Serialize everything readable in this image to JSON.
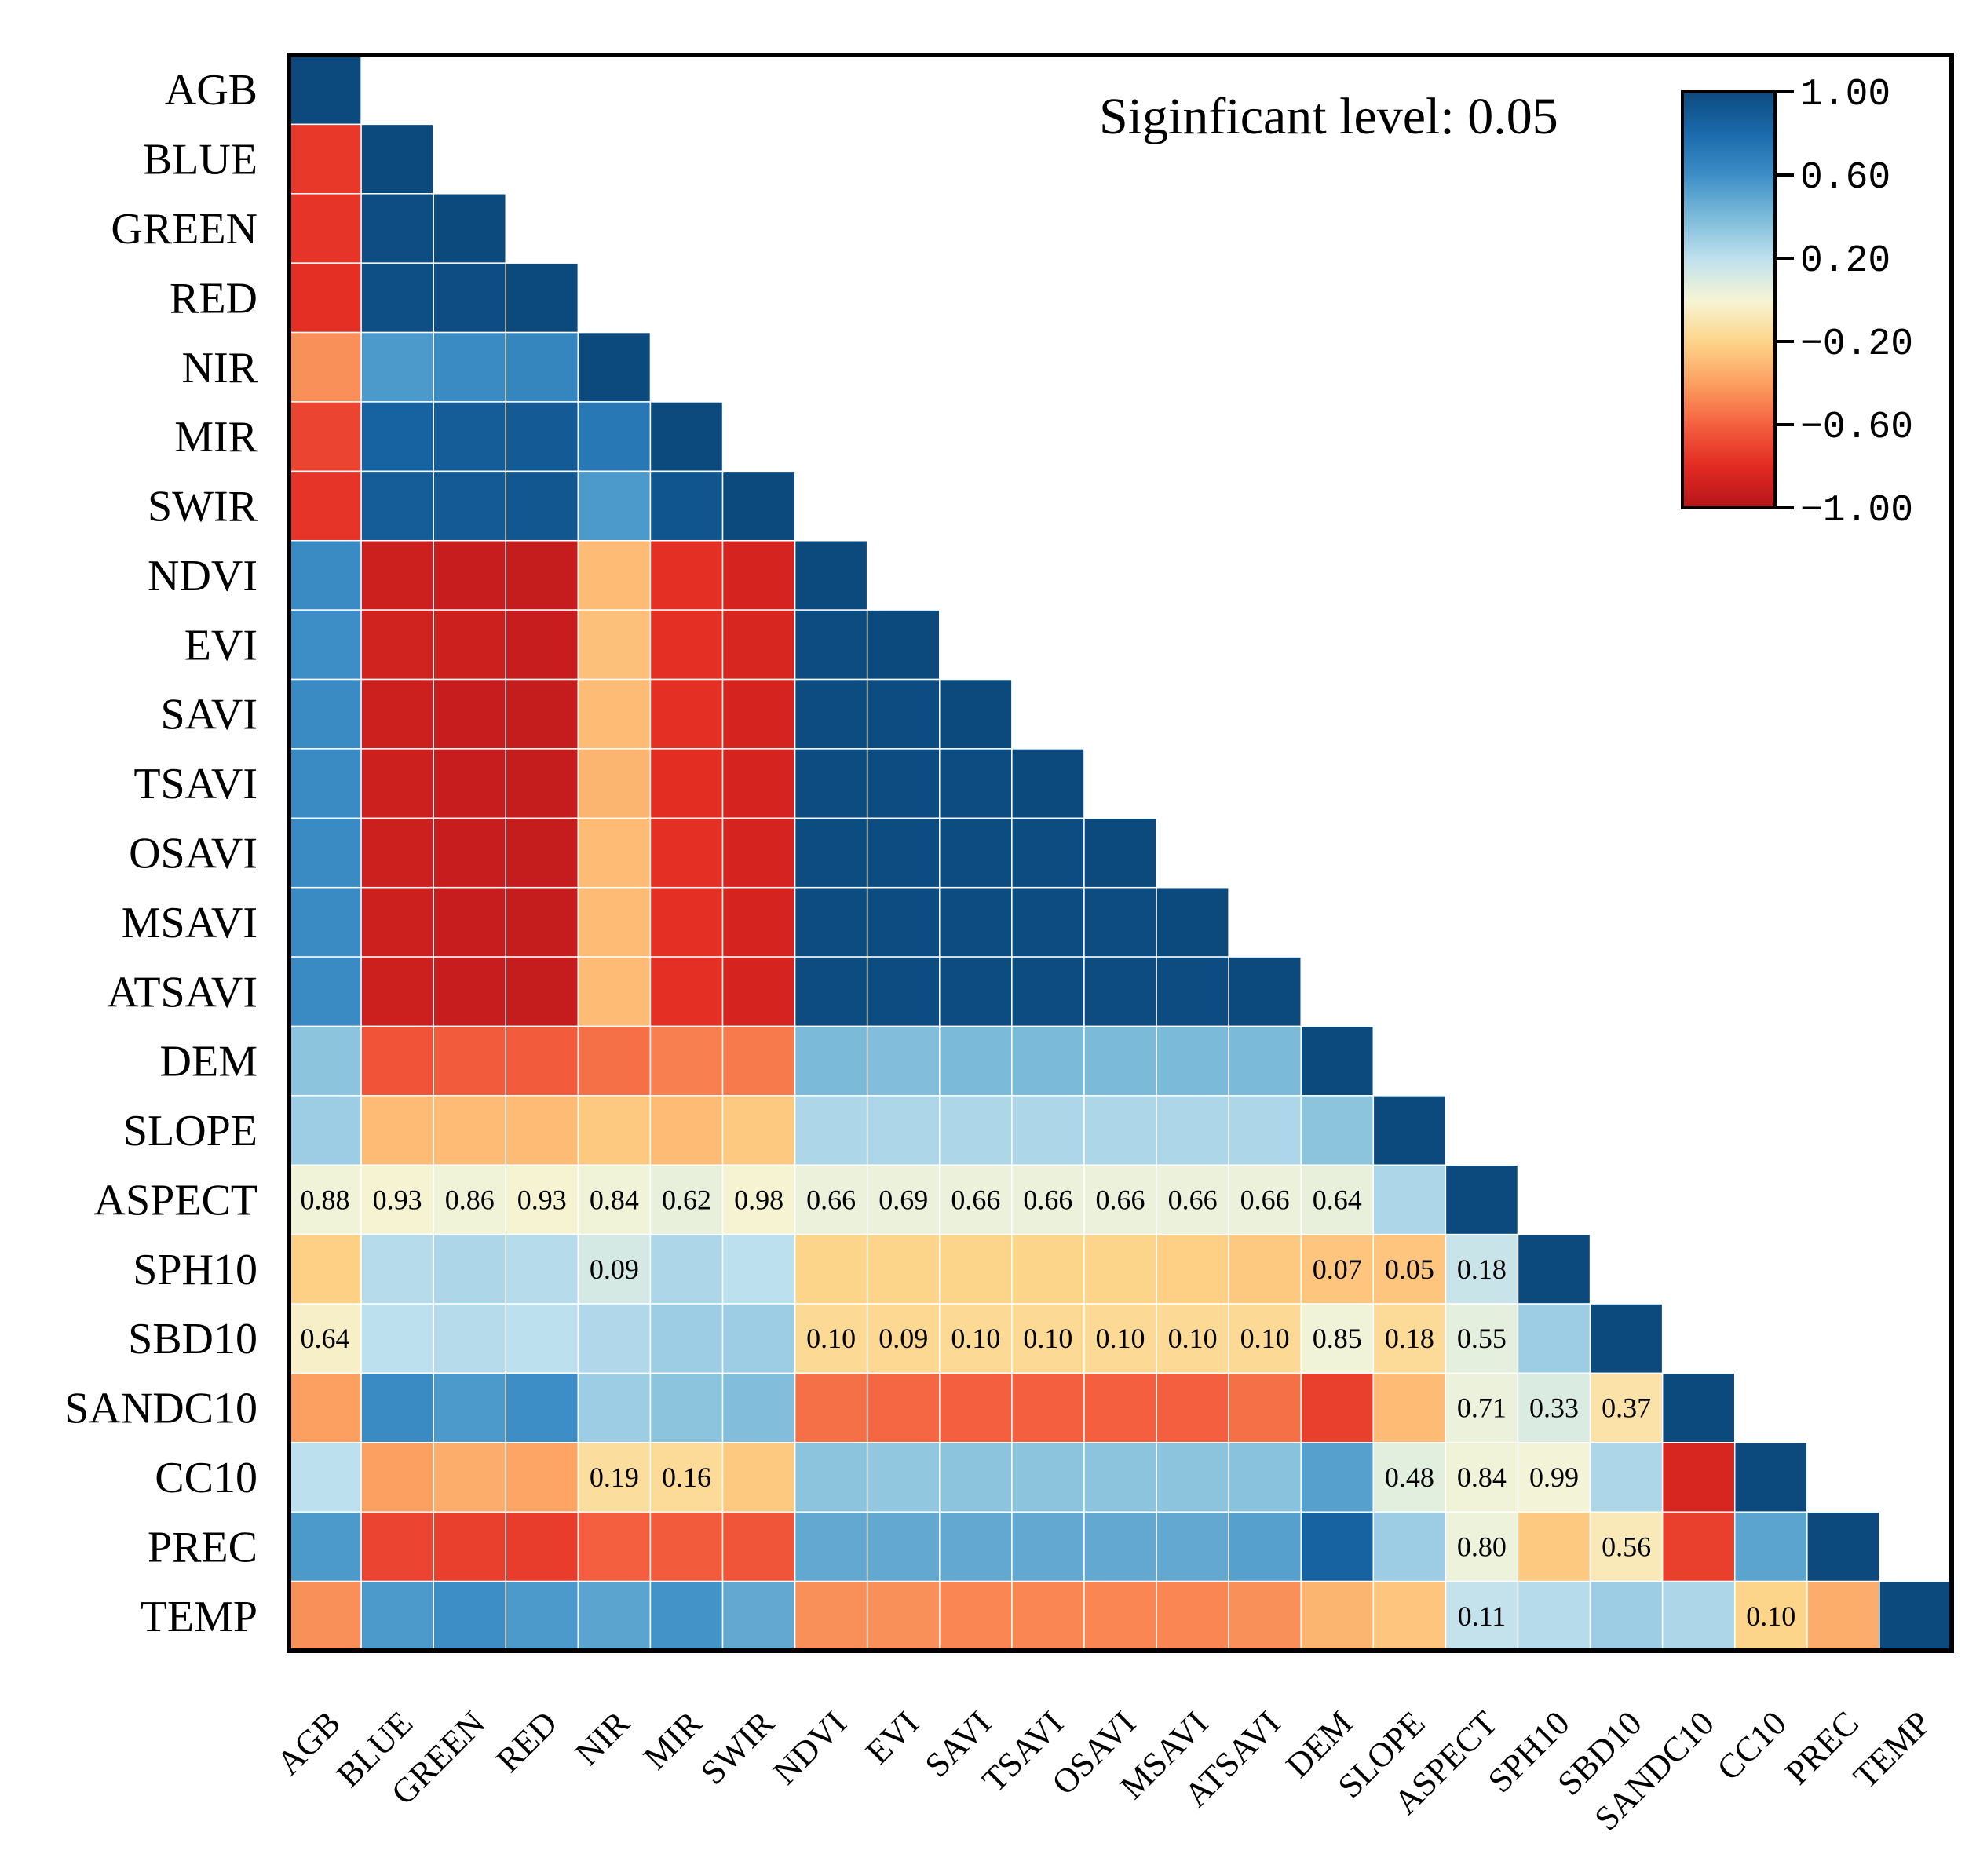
{
  "chart_data": {
    "type": "heatmap",
    "subtype": "lower-triangular correlation matrix",
    "annotation": "Siginficant level: 0.05",
    "variables": [
      "AGB",
      "BLUE",
      "GREEN",
      "RED",
      "NIR",
      "MIR",
      "SWIR",
      "NDVI",
      "EVI",
      "SAVI",
      "TSAVI",
      "OSAVI",
      "MSAVI",
      "ATSAVI",
      "DEM",
      "SLOPE",
      "ASPECT",
      "SPH10",
      "SBD10",
      "SANDC10",
      "CC10",
      "PREC",
      "TEMP"
    ],
    "correlation_rows": [
      [
        1.0
      ],
      [
        -0.75,
        1.0
      ],
      [
        -0.76,
        0.98,
        1.0
      ],
      [
        -0.78,
        0.97,
        0.98,
        1.0
      ],
      [
        -0.45,
        0.55,
        0.62,
        0.65,
        1.0
      ],
      [
        -0.7,
        0.85,
        0.88,
        0.9,
        0.72,
        1.0
      ],
      [
        -0.76,
        0.88,
        0.9,
        0.92,
        0.55,
        0.93,
        1.0
      ],
      [
        0.62,
        -0.9,
        -0.92,
        -0.93,
        -0.3,
        -0.78,
        -0.86,
        1.0
      ],
      [
        0.6,
        -0.88,
        -0.9,
        -0.92,
        -0.28,
        -0.78,
        -0.85,
        0.99,
        1.0
      ],
      [
        0.62,
        -0.9,
        -0.92,
        -0.93,
        -0.3,
        -0.78,
        -0.86,
        0.99,
        0.99,
        1.0
      ],
      [
        0.62,
        -0.9,
        -0.92,
        -0.93,
        -0.32,
        -0.79,
        -0.86,
        0.99,
        0.99,
        0.99,
        1.0
      ],
      [
        0.62,
        -0.9,
        -0.92,
        -0.93,
        -0.3,
        -0.78,
        -0.86,
        0.99,
        0.99,
        0.99,
        0.99,
        1.0
      ],
      [
        0.62,
        -0.9,
        -0.92,
        -0.93,
        -0.3,
        -0.78,
        -0.86,
        0.99,
        0.99,
        0.99,
        0.99,
        0.99,
        1.0
      ],
      [
        0.62,
        -0.9,
        -0.92,
        -0.93,
        -0.3,
        -0.78,
        -0.86,
        0.99,
        0.99,
        0.99,
        0.99,
        0.99,
        0.99,
        1.0
      ],
      [
        0.35,
        -0.65,
        -0.62,
        -0.62,
        -0.55,
        -0.5,
        -0.52,
        0.4,
        0.38,
        0.4,
        0.4,
        0.4,
        0.4,
        0.4,
        1.0
      ],
      [
        0.3,
        -0.3,
        -0.3,
        -0.3,
        -0.25,
        -0.3,
        -0.25,
        0.25,
        0.25,
        0.25,
        0.25,
        0.25,
        0.25,
        0.25,
        0.35,
        1.0
      ],
      [
        0.02,
        -0.01,
        0.02,
        -0.01,
        0.02,
        0.05,
        -0.01,
        0.04,
        0.04,
        0.04,
        0.04,
        0.04,
        0.04,
        0.04,
        0.05,
        0.25,
        1.0
      ],
      [
        -0.22,
        0.22,
        0.25,
        0.22,
        0.12,
        0.25,
        0.2,
        -0.2,
        -0.2,
        -0.2,
        -0.2,
        -0.2,
        -0.22,
        -0.25,
        -0.26,
        -0.26,
        0.16,
        1.0
      ],
      [
        -0.04,
        0.2,
        0.22,
        0.2,
        0.24,
        0.3,
        0.3,
        -0.17,
        -0.18,
        -0.17,
        -0.17,
        -0.17,
        -0.17,
        -0.17,
        0.02,
        -0.16,
        0.06,
        0.3,
        1.0
      ],
      [
        -0.4,
        0.62,
        0.55,
        0.6,
        0.3,
        0.35,
        0.38,
        -0.55,
        -0.58,
        -0.6,
        -0.6,
        -0.6,
        -0.6,
        -0.55,
        -0.72,
        -0.3,
        0.04,
        0.1,
        -0.12,
        1.0
      ],
      [
        0.2,
        -0.4,
        -0.35,
        -0.38,
        -0.15,
        -0.16,
        -0.25,
        0.35,
        0.33,
        0.35,
        0.35,
        0.35,
        0.35,
        0.36,
        0.52,
        0.07,
        0.02,
        0.01,
        0.25,
        -0.85,
        1.0
      ],
      [
        0.55,
        -0.7,
        -0.72,
        -0.73,
        -0.6,
        -0.62,
        -0.64,
        0.48,
        0.48,
        0.48,
        0.48,
        0.48,
        0.48,
        0.52,
        0.85,
        0.3,
        0.03,
        -0.25,
        -0.08,
        -0.72,
        0.5,
        1.0
      ],
      [
        -0.45,
        0.55,
        0.6,
        0.55,
        0.5,
        0.58,
        0.48,
        -0.45,
        -0.45,
        -0.48,
        -0.48,
        -0.48,
        -0.48,
        -0.45,
        -0.32,
        -0.26,
        0.18,
        0.22,
        0.3,
        0.25,
        -0.2,
        -0.35,
        1.0
      ]
    ],
    "p_value_labels": {
      "ASPECT": {
        "AGB": "0.88",
        "BLUE": "0.93",
        "GREEN": "0.86",
        "RED": "0.93",
        "NIR": "0.84",
        "MIR": "0.62",
        "SWIR": "0.98",
        "NDVI": "0.66",
        "EVI": "0.69",
        "SAVI": "0.66",
        "TSAVI": "0.66",
        "OSAVI": "0.66",
        "MSAVI": "0.66",
        "ATSAVI": "0.66",
        "DEM": "0.64"
      },
      "SPH10": {
        "NIR": "0.09",
        "DEM": "0.07",
        "SLOPE": "0.05",
        "ASPECT": "0.18"
      },
      "SBD10": {
        "AGB": "0.64",
        "NDVI": "0.10",
        "EVI": "0.09",
        "SAVI": "0.10",
        "TSAVI": "0.10",
        "OSAVI": "0.10",
        "MSAVI": "0.10",
        "ATSAVI": "0.10",
        "DEM": "0.85",
        "SLOPE": "0.18",
        "ASPECT": "0.55"
      },
      "SANDC10": {
        "ASPECT": "0.71",
        "SPH10": "0.33",
        "SBD10": "0.37"
      },
      "CC10": {
        "NIR": "0.19",
        "MIR": "0.16",
        "SLOPE": "0.48",
        "ASPECT": "0.84",
        "SPH10": "0.99"
      },
      "PREC": {
        "ASPECT": "0.80",
        "SBD10": "0.56"
      },
      "TEMP": {
        "ASPECT": "0.11",
        "CC10": "0.10"
      }
    },
    "colorbar": {
      "range": [
        -1.0,
        1.0
      ],
      "tick_labels": [
        "1.00",
        "0.60",
        "0.20",
        "−0.20",
        "−0.60",
        "−1.00"
      ],
      "tick_values": [
        1.0,
        0.6,
        0.2,
        -0.2,
        -0.6,
        -1.0
      ],
      "colormap": "RdYlBu",
      "placement": "top-right"
    }
  }
}
